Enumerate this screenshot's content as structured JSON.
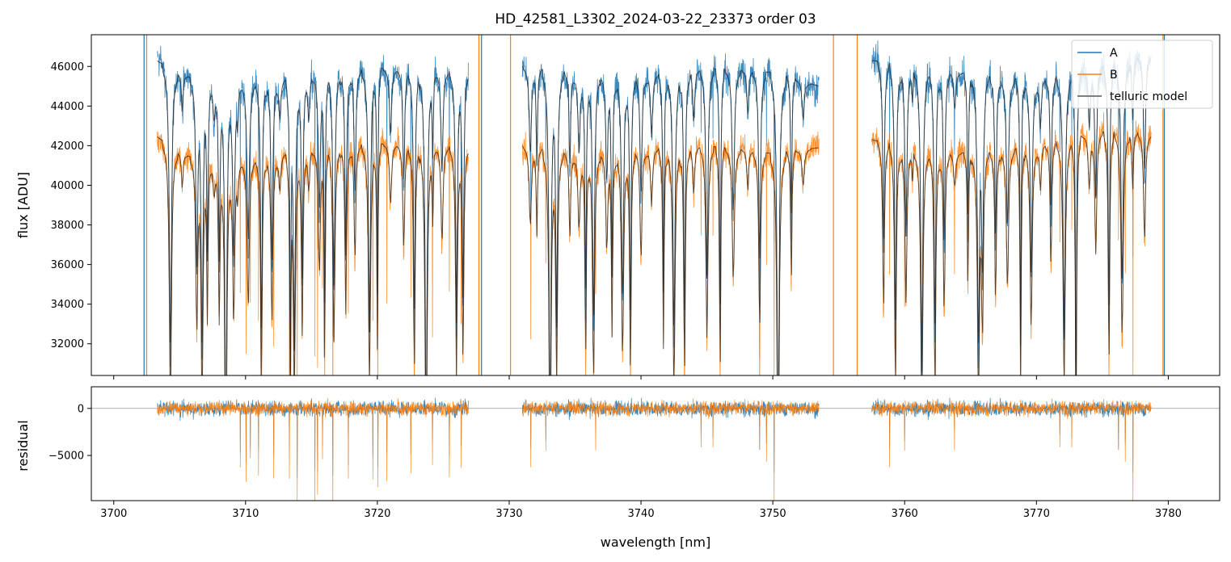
{
  "chart_data": [
    {
      "type": "line",
      "title": "HD_42581_L3302_2024-03-22_23373  order 03",
      "ylabel": "flux [ADU]",
      "xlim": [
        3698.3,
        3783.9
      ],
      "ylim": [
        30400,
        47600
      ],
      "xticks": [
        3700,
        3710,
        3720,
        3730,
        3740,
        3750,
        3760,
        3770,
        3780
      ],
      "yticks": [
        32000,
        34000,
        36000,
        38000,
        40000,
        42000,
        44000,
        46000
      ],
      "yticklabels": [
        "32000",
        "34000",
        "36000",
        "38000",
        "40000",
        "42000",
        "44000",
        "46000"
      ],
      "legend": {
        "position": "upper right",
        "entries": [
          "A",
          "B",
          "telluric model"
        ]
      },
      "colors": {
        "A": "#1f77b4",
        "B": "#ff7f0e",
        "telluric model": "#222222"
      },
      "segments": [
        [
          3703.3,
          3726.9
        ],
        [
          3731.0,
          3753.5
        ],
        [
          3757.5,
          3778.7
        ]
      ],
      "series": [
        {
          "name": "A",
          "continuum_x": [
            3703,
            3705,
            3708,
            3712,
            3716,
            3720,
            3724,
            3727,
            3731,
            3735,
            3740,
            3745,
            3750,
            3753.5,
            3757.5,
            3762,
            3766,
            3770,
            3775,
            3778.7
          ],
          "continuum_y": [
            46400,
            45600,
            45000,
            45300,
            45700,
            45900,
            45800,
            45700,
            46000,
            45600,
            45500,
            45900,
            45700,
            45000,
            46300,
            45900,
            45500,
            45300,
            46000,
            46600
          ]
        },
        {
          "name": "B",
          "continuum_x": [
            3703,
            3705,
            3708,
            3712,
            3716,
            3720,
            3724,
            3727,
            3731,
            3735,
            3740,
            3745,
            3750,
            3753.5,
            3757.5,
            3762,
            3766,
            3770,
            3775,
            3778.7
          ],
          "continuum_y": [
            42600,
            41600,
            41000,
            41500,
            42000,
            42100,
            42000,
            41900,
            42000,
            41500,
            41800,
            42000,
            41600,
            41900,
            42300,
            41700,
            41600,
            42000,
            42700,
            42600
          ]
        },
        {
          "name": "telluric model",
          "absorption_lines_nm": [
            3704.3,
            3705.2,
            3706.3,
            3706.7,
            3707.1,
            3707.6,
            3708.0,
            3708.5,
            3709.1,
            3709.4,
            3710.2,
            3711.2,
            3712.0,
            3712.6,
            3713.4,
            3713.7,
            3714.3,
            3714.8,
            3715.6,
            3716.0,
            3716.7,
            3717.6,
            3718.3,
            3719.4,
            3720.0,
            3721.0,
            3722.0,
            3722.8,
            3723.7,
            3724.2,
            3724.9,
            3726.0,
            3726.5,
            3731.6,
            3732.1,
            3733.1,
            3733.6,
            3734.6,
            3735.3,
            3735.8,
            3736.4,
            3737.4,
            3737.8,
            3738.6,
            3739.2,
            3740.0,
            3740.8,
            3741.7,
            3742.5,
            3743.3,
            3744.0,
            3745.0,
            3746.0,
            3747.0,
            3748.1,
            3749.0,
            3750.4,
            3751.4,
            3752.3,
            3758.4,
            3759.3,
            3760.1,
            3760.6,
            3761.3,
            3762.3,
            3763.0,
            3763.8,
            3764.8,
            3765.6,
            3765.9,
            3766.9,
            3767.8,
            3768.8,
            3769.6,
            3770.3,
            3771.1,
            3772.1,
            3773.0,
            3774.0,
            3774.5,
            3775.5,
            3776.5,
            3777.3,
            3778.2
          ]
        }
      ]
    },
    {
      "type": "line",
      "xlabel": "wavelength [nm]",
      "ylabel": "residual",
      "xlim": [
        3698.3,
        3783.9
      ],
      "ylim": [
        -9800,
        2300
      ],
      "xticks": [
        3700,
        3710,
        3720,
        3730,
        3740,
        3750,
        3760,
        3770,
        3780
      ],
      "xticklabels": [
        "3700",
        "3710",
        "3720",
        "3730",
        "3740",
        "3750",
        "3760",
        "3770",
        "3780"
      ],
      "yticks": [
        0,
        -5000
      ],
      "yticklabels": [
        "0",
        "−5000"
      ],
      "reference_line": 0,
      "series": [
        {
          "name": "A"
        },
        {
          "name": "B"
        }
      ]
    }
  ]
}
